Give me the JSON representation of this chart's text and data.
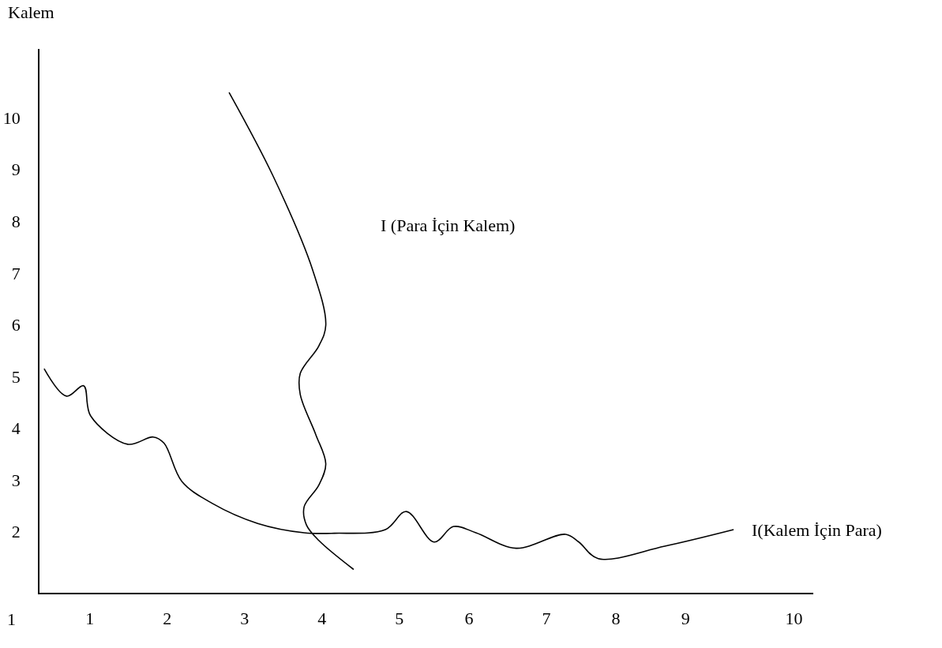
{
  "chart_data": {
    "type": "line",
    "ylabel": "Kalem",
    "xlim": [
      0.35,
      10.35
    ],
    "ylim": [
      0.82,
      11.33
    ],
    "xticks": [
      1,
      2,
      3,
      4,
      5,
      {
        "value": 5.9,
        "label": "6"
      },
      {
        "value": 6.9,
        "label": "7"
      },
      {
        "value": 7.8,
        "label": "8"
      },
      {
        "value": 8.7,
        "label": "9"
      },
      {
        "value": 10.1,
        "label": "10"
      }
    ],
    "yticks": [
      2,
      3,
      4,
      5,
      6,
      7,
      8,
      9,
      10
    ],
    "series": [
      {
        "color": "#000000",
        "x": [
          0.41,
          0.7,
          0.92,
          1.01,
          1.49,
          1.82,
          1.96,
          2.19,
          2.58,
          3.17,
          3.77,
          4.16,
          4.82,
          5.09,
          5.45,
          5.7,
          5.99,
          6.51,
          7.15,
          7.32,
          7.57,
          8.43,
          9.32
        ],
        "values": [
          5.15,
          4.62,
          4.82,
          4.24,
          3.69,
          3.83,
          3.71,
          2.97,
          2.55,
          2.16,
          1.98,
          1.97,
          2.04,
          2.39,
          1.8,
          2.1,
          1.98,
          1.68,
          1.95,
          1.8,
          1.48,
          1.72,
          2.04
        ]
      },
      {
        "color": "#000000",
        "x": [
          2.8,
          3.37,
          3.88,
          4.05,
          3.96,
          3.72,
          3.72,
          3.92,
          4.05,
          3.96,
          3.77,
          3.8,
          3.96,
          4.41
        ],
        "values": [
          10.49,
          8.87,
          7.06,
          5.99,
          5.59,
          5.06,
          4.65,
          3.88,
          3.31,
          2.9,
          2.48,
          2.13,
          1.83,
          1.27
        ]
      }
    ],
    "annotations": [
      "I (Para İçin Kalem)",
      "I(Kalem İçin Para)",
      "1"
    ]
  }
}
